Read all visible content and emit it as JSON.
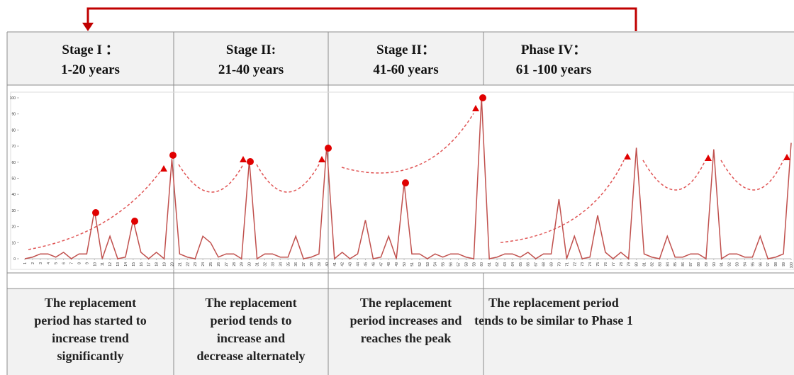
{
  "header": {
    "columns": [
      {
        "title": "Stage I ：",
        "range": "1-20 years"
      },
      {
        "title": "Stage II:",
        "range": "21-40 years"
      },
      {
        "title": "Stage II：",
        "range": "41-60 years"
      },
      {
        "title": "Phase IV：",
        "range": "61 -100 years"
      }
    ]
  },
  "chart_data": {
    "type": "line",
    "color": "#c0504d",
    "x": [
      1,
      2,
      3,
      4,
      5,
      6,
      7,
      8,
      9,
      10,
      11,
      12,
      13,
      14,
      15,
      16,
      17,
      18,
      19,
      20,
      21,
      22,
      23,
      24,
      25,
      26,
      27,
      28,
      29,
      30,
      31,
      32,
      33,
      34,
      35,
      36,
      37,
      38,
      39,
      40,
      41,
      42,
      43,
      44,
      45,
      46,
      47,
      48,
      49,
      50,
      51,
      52,
      53,
      54,
      55,
      56,
      57,
      58,
      59,
      60,
      61,
      62,
      63,
      64,
      65,
      66,
      67,
      68,
      69,
      70,
      71,
      72,
      73,
      74,
      75,
      76,
      77,
      78,
      79,
      80,
      81,
      82,
      83,
      84,
      85,
      86,
      87,
      88,
      89,
      90,
      91,
      92,
      93,
      94,
      95,
      96,
      97,
      98,
      99,
      100
    ],
    "values": [
      0,
      1,
      3,
      3,
      1,
      4,
      0,
      3,
      3,
      30,
      0,
      14,
      0,
      1,
      24,
      4,
      0,
      4,
      0,
      62,
      3,
      1,
      0,
      14,
      10,
      1,
      3,
      3,
      0,
      61,
      0,
      3,
      3,
      1,
      1,
      14,
      0,
      1,
      3,
      70,
      0,
      4,
      0,
      3,
      24,
      0,
      1,
      14,
      0,
      47,
      3,
      3,
      0,
      3,
      1,
      3,
      3,
      1,
      0,
      100,
      0,
      1,
      3,
      3,
      1,
      4,
      0,
      3,
      3,
      37,
      0,
      14,
      0,
      1,
      27,
      4,
      0,
      4,
      0,
      69,
      3,
      1,
      0,
      14,
      1,
      1,
      3,
      3,
      0,
      68,
      0,
      3,
      3,
      1,
      1,
      14,
      0,
      1,
      3,
      72
    ],
    "xlim": [
      1,
      100
    ],
    "ylim": [
      0,
      100
    ],
    "yticks": [
      0,
      10,
      20,
      30,
      40,
      50,
      60,
      70,
      80,
      90,
      100
    ],
    "grid": false
  },
  "descriptions": [
    [
      "The replacement",
      "period has started to",
      "increase trend",
      "significantly"
    ],
    [
      "The replacement",
      "period tends to",
      "increase and",
      "decrease alternately"
    ],
    [
      "The replacement",
      "period increases and",
      "reaches the peak"
    ],
    [
      "The replacement period",
      "tends to be similar to Phase 1"
    ]
  ]
}
